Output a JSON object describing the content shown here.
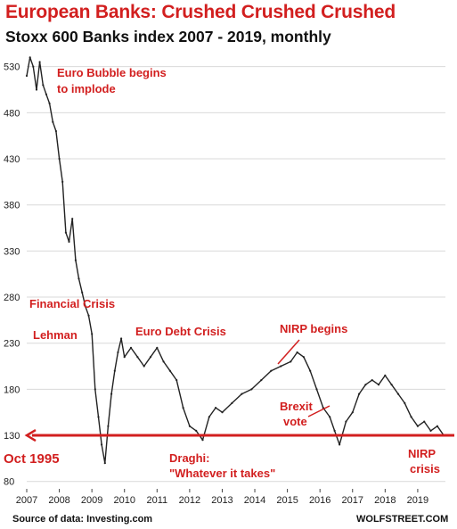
{
  "chart_data": {
    "type": "line",
    "title": "European Banks: Crushed Crushed Crushed",
    "subtitle": "Stoxx 600 Banks index 2007 - 2019, monthly",
    "ylim": [
      72,
      550
    ],
    "yticks": [
      80,
      130,
      180,
      230,
      280,
      330,
      380,
      430,
      480,
      530
    ],
    "xlim": [
      2007,
      2019.85
    ],
    "xticks": [
      "2007",
      "2008",
      "2009",
      "2010",
      "2011",
      "2012",
      "2013",
      "2014",
      "2015",
      "2016",
      "2017",
      "2018",
      "2019"
    ],
    "grid": "horizontal",
    "series": [
      {
        "color": "#222222",
        "x": [
          2007.0,
          2007.1,
          2007.2,
          2007.3,
          2007.4,
          2007.5,
          2007.6,
          2007.7,
          2007.8,
          2007.9,
          2008.0,
          2008.1,
          2008.2,
          2008.3,
          2008.4,
          2008.5,
          2008.6,
          2008.7,
          2008.8,
          2008.9,
          2009.0,
          2009.1,
          2009.2,
          2009.3,
          2009.4,
          2009.5,
          2009.6,
          2009.7,
          2009.8,
          2009.9,
          2010.0,
          2010.2,
          2010.4,
          2010.6,
          2010.8,
          2011.0,
          2011.2,
          2011.4,
          2011.6,
          2011.8,
          2012.0,
          2012.2,
          2012.4,
          2012.6,
          2012.8,
          2013.0,
          2013.3,
          2013.6,
          2013.9,
          2014.2,
          2014.5,
          2014.8,
          2015.1,
          2015.3,
          2015.5,
          2015.7,
          2015.9,
          2016.1,
          2016.3,
          2016.45,
          2016.6,
          2016.8,
          2017.0,
          2017.2,
          2017.4,
          2017.6,
          2017.8,
          2018.0,
          2018.2,
          2018.4,
          2018.6,
          2018.8,
          2019.0,
          2019.2,
          2019.4,
          2019.6,
          2019.8
        ],
        "y": [
          520,
          540,
          530,
          505,
          535,
          510,
          500,
          490,
          470,
          460,
          430,
          405,
          350,
          340,
          365,
          320,
          300,
          285,
          270,
          260,
          240,
          180,
          150,
          120,
          100,
          140,
          175,
          200,
          220,
          235,
          215,
          225,
          215,
          205,
          215,
          225,
          210,
          200,
          190,
          160,
          140,
          135,
          125,
          150,
          160,
          155,
          165,
          175,
          180,
          190,
          200,
          205,
          210,
          220,
          215,
          200,
          180,
          160,
          150,
          135,
          120,
          145,
          155,
          175,
          185,
          190,
          185,
          195,
          185,
          175,
          165,
          150,
          140,
          145,
          135,
          140,
          130
        ]
      }
    ],
    "reference_line": {
      "value": 130,
      "label": "Oct 1995",
      "color": "#d21f1f"
    },
    "annotations": {
      "euro_bubble_1": "Euro Bubble begins",
      "euro_bubble_2": "to implode",
      "financial_crisis": "Financial Crisis",
      "lehman": "Lehman",
      "euro_debt_crisis": "Euro Debt Crisis",
      "nirp_begins": "NIRP begins",
      "brexit_1": "Brexit",
      "brexit_2": "vote",
      "draghi_1": "Draghi:",
      "draghi_2": "\"Whatever it takes\"",
      "nirp_crisis_1": "NIRP",
      "nirp_crisis_2": "crisis"
    },
    "source": "Source of data: Investing.com",
    "credit": "WOLFSTREET.COM"
  }
}
